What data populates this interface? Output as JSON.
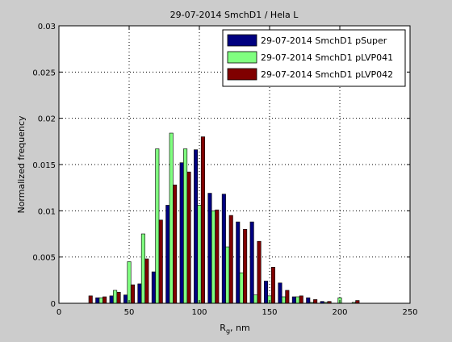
{
  "figure": {
    "background": "#cccccc"
  },
  "chart_data": {
    "type": "bar",
    "title": "29-07-2014 SmchD1 / Hela L",
    "xlabel_main": "R",
    "xlabel_sub": "g",
    "xlabel_rest": ", nm",
    "ylabel": "Normalized frequency",
    "xlim": [
      0,
      250
    ],
    "ylim": [
      0,
      0.03
    ],
    "xticks": [
      0,
      50,
      100,
      150,
      200,
      250
    ],
    "yticks": [
      0,
      0.005,
      0.01,
      0.015,
      0.02,
      0.025,
      0.03
    ],
    "xtick_labels": [
      "0",
      "50",
      "100",
      "150",
      "200",
      "250"
    ],
    "ytick_labels": [
      "0",
      "0.005",
      "0.01",
      "0.015",
      "0.02",
      "0.025",
      "0.03"
    ],
    "grid": true,
    "legend_position": "top-right",
    "x": [
      20,
      30,
      40,
      50,
      60,
      70,
      80,
      90,
      100,
      110,
      120,
      130,
      140,
      150,
      160,
      170,
      180,
      190,
      200,
      210
    ],
    "series": [
      {
        "name": "29-07-2014 SmchD1 pSuper",
        "color": "#000080",
        "values": [
          0.0,
          0.0006,
          0.0008,
          0.0009,
          0.0021,
          0.0034,
          0.0106,
          0.0152,
          0.0166,
          0.0119,
          0.0118,
          0.0088,
          0.0088,
          0.0024,
          0.0022,
          0.0007,
          0.0006,
          0.0002,
          0.0,
          0.0
        ]
      },
      {
        "name": "29-07-2014 SmchD1 pLVP041",
        "color": "#80ff80",
        "values": [
          0.0,
          0.0006,
          0.0014,
          0.0045,
          0.0075,
          0.0167,
          0.0184,
          0.0167,
          0.0106,
          0.01,
          0.0061,
          0.0033,
          0.0009,
          0.0008,
          0.0007,
          0.0007,
          0.0001,
          0.0001,
          0.0006,
          0.0001
        ]
      },
      {
        "name": "29-07-2014 SmchD1 pLVP042",
        "color": "#800000",
        "values": [
          0.0008,
          0.0007,
          0.0012,
          0.002,
          0.0048,
          0.009,
          0.0128,
          0.0142,
          0.018,
          0.0101,
          0.0095,
          0.008,
          0.0067,
          0.0039,
          0.0014,
          0.0008,
          0.0004,
          0.0002,
          0.0,
          0.0003
        ]
      }
    ]
  }
}
